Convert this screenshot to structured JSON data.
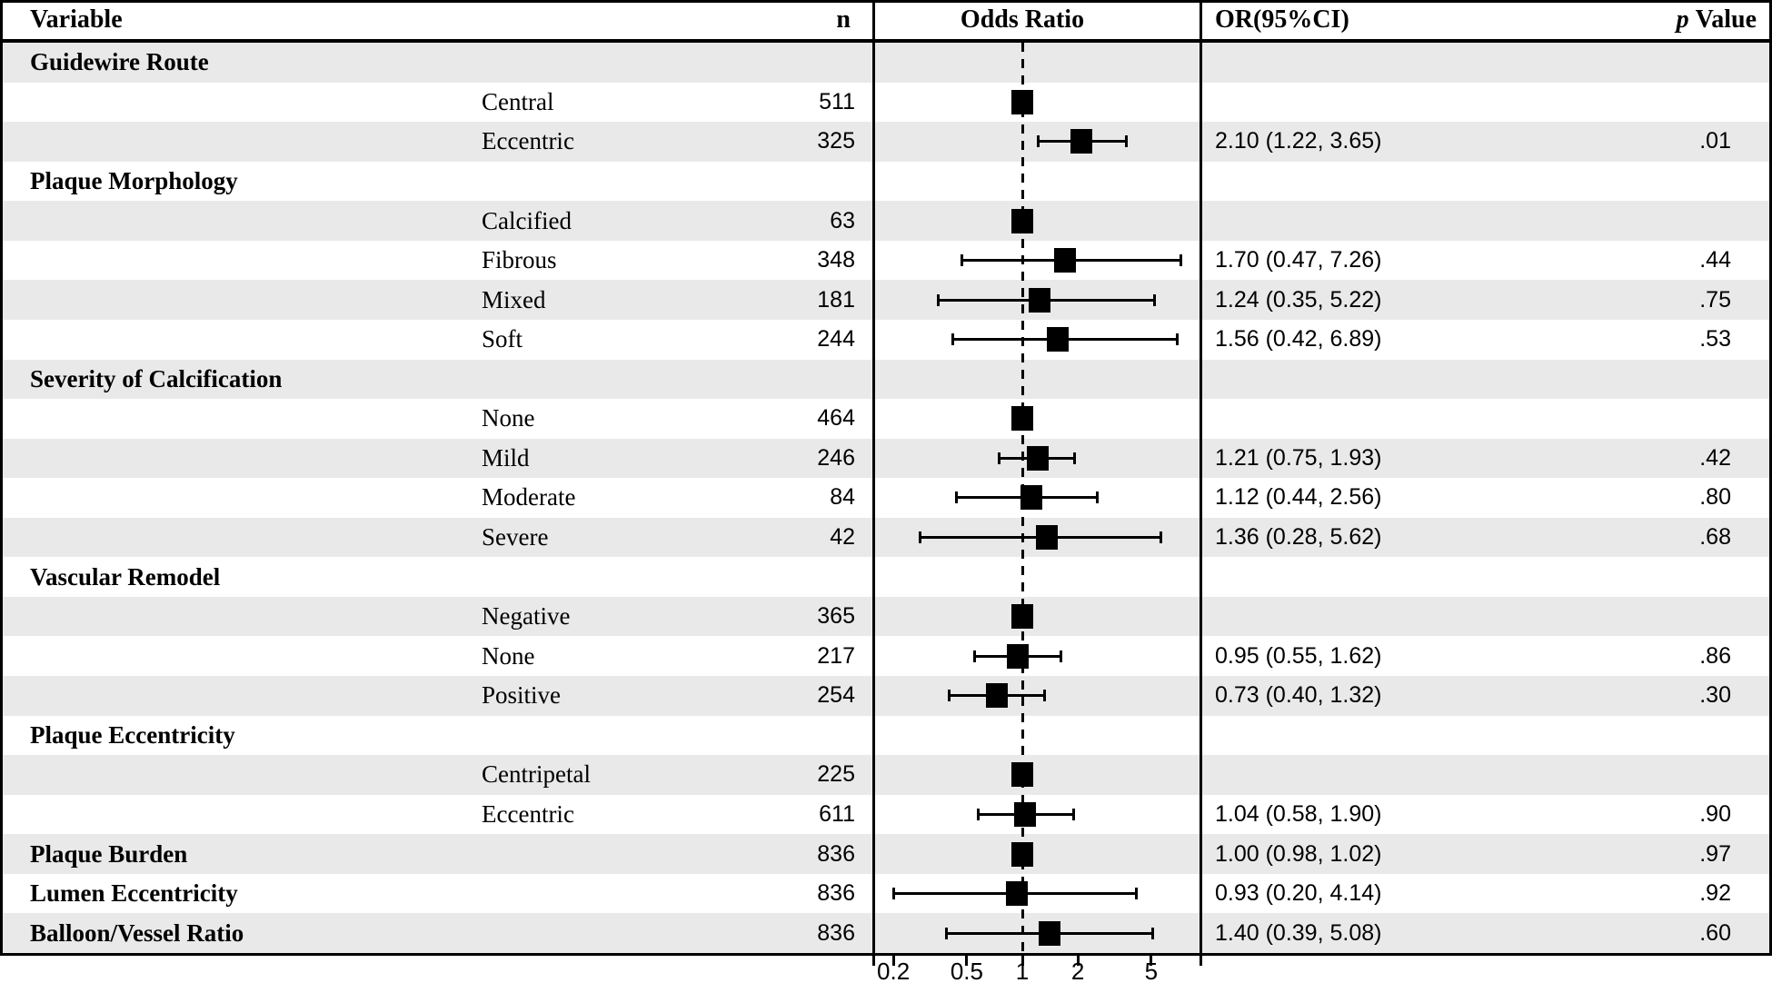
{
  "header": {
    "variable": "Variable",
    "n": "n",
    "odds_ratio": "Odds Ratio",
    "or_ci": "OR(95%CI)",
    "p_italic": "p",
    "p_rest": "Value"
  },
  "colors": {
    "row_shade": "#e9e9e9",
    "row_plain": "#ffffff",
    "marker": "#000000",
    "border": "#000000"
  },
  "chart_data": {
    "type": "forest",
    "x_axis": {
      "scale": "log",
      "ticks": [
        "0.2",
        "0.5",
        "1",
        "2",
        "5"
      ],
      "tick_values": [
        0.2,
        0.5,
        1,
        2,
        5
      ],
      "reference_line": 1
    },
    "rows": [
      {
        "kind": "group",
        "label": "Guidewire Route"
      },
      {
        "kind": "item",
        "label": "Central",
        "n": "511",
        "or": 1.0,
        "ref": true
      },
      {
        "kind": "item",
        "label": "Eccentric",
        "n": "325",
        "or": 2.1,
        "ci_low": 1.22,
        "ci_high": 3.65,
        "or_text": "2.10 (1.22, 3.65)",
        "p": ".01"
      },
      {
        "kind": "group",
        "label": "Plaque Morphology"
      },
      {
        "kind": "item",
        "label": "Calcified",
        "n": "63",
        "or": 1.0,
        "ref": true
      },
      {
        "kind": "item",
        "label": "Fibrous",
        "n": "348",
        "or": 1.7,
        "ci_low": 0.47,
        "ci_high": 7.26,
        "or_text": "1.70 (0.47, 7.26)",
        "p": ".44"
      },
      {
        "kind": "item",
        "label": "Mixed",
        "n": "181",
        "or": 1.24,
        "ci_low": 0.35,
        "ci_high": 5.22,
        "or_text": "1.24 (0.35, 5.22)",
        "p": ".75"
      },
      {
        "kind": "item",
        "label": "Soft",
        "n": "244",
        "or": 1.56,
        "ci_low": 0.42,
        "ci_high": 6.89,
        "or_text": "1.56 (0.42, 6.89)",
        "p": ".53"
      },
      {
        "kind": "group",
        "label": "Severity of Calcification"
      },
      {
        "kind": "item",
        "label": "None",
        "n": "464",
        "or": 1.0,
        "ref": true
      },
      {
        "kind": "item",
        "label": "Mild",
        "n": "246",
        "or": 1.21,
        "ci_low": 0.75,
        "ci_high": 1.93,
        "or_text": "1.21 (0.75, 1.93)",
        "p": ".42"
      },
      {
        "kind": "item",
        "label": "Moderate",
        "n": "84",
        "or": 1.12,
        "ci_low": 0.44,
        "ci_high": 2.56,
        "or_text": "1.12 (0.44, 2.56)",
        "p": ".80"
      },
      {
        "kind": "item",
        "label": "Severe",
        "n": "42",
        "or": 1.36,
        "ci_low": 0.28,
        "ci_high": 5.62,
        "or_text": "1.36 (0.28, 5.62)",
        "p": ".68"
      },
      {
        "kind": "group",
        "label": "Vascular Remodel"
      },
      {
        "kind": "item",
        "label": "Negative",
        "n": "365",
        "or": 1.0,
        "ref": true
      },
      {
        "kind": "item",
        "label": "None",
        "n": "217",
        "or": 0.95,
        "ci_low": 0.55,
        "ci_high": 1.62,
        "or_text": "0.95 (0.55, 1.62)",
        "p": ".86"
      },
      {
        "kind": "item",
        "label": "Positive",
        "n": "254",
        "or": 0.73,
        "ci_low": 0.4,
        "ci_high": 1.32,
        "or_text": "0.73 (0.40, 1.32)",
        "p": ".30"
      },
      {
        "kind": "group",
        "label": "Plaque Eccentricity"
      },
      {
        "kind": "item",
        "label": "Centripetal",
        "n": "225",
        "or": 1.0,
        "ref": true
      },
      {
        "kind": "item",
        "label": "Eccentric",
        "n": "611",
        "or": 1.04,
        "ci_low": 0.58,
        "ci_high": 1.9,
        "or_text": "1.04 (0.58, 1.90)",
        "p": ".90"
      },
      {
        "kind": "group",
        "label": "Plaque Burden",
        "n": "836",
        "or": 1.0,
        "ci_low": 0.98,
        "ci_high": 1.02,
        "or_text": "1.00 (0.98, 1.02)",
        "p": ".97"
      },
      {
        "kind": "group",
        "label": "Lumen Eccentricity",
        "n": "836",
        "or": 0.93,
        "ci_low": 0.2,
        "ci_high": 4.14,
        "or_text": "0.93 (0.20, 4.14)",
        "p": ".92"
      },
      {
        "kind": "group",
        "label": "Balloon/Vessel Ratio",
        "n": "836",
        "or": 1.4,
        "ci_low": 0.39,
        "ci_high": 5.08,
        "or_text": "1.40 (0.39, 5.08)",
        "p": ".60"
      }
    ]
  }
}
